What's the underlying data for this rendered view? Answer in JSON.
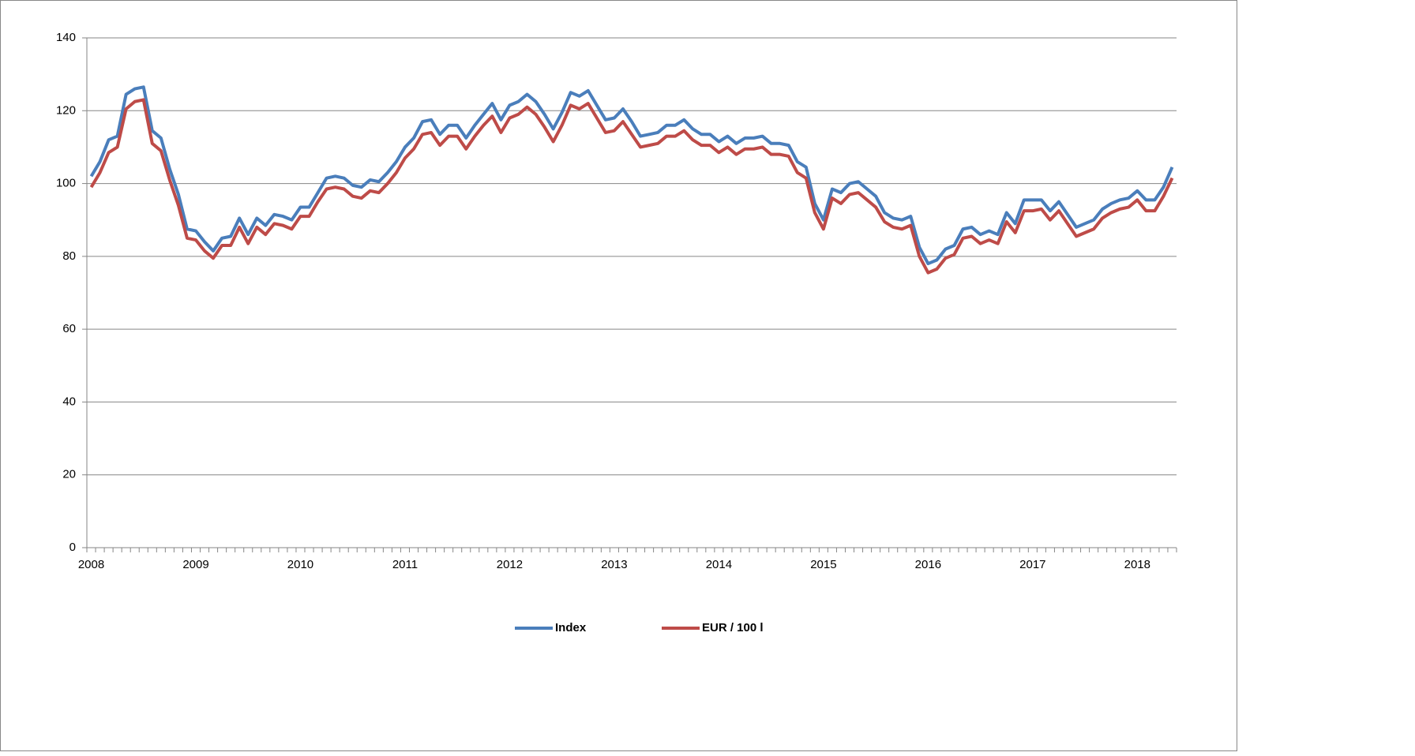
{
  "chart_data": {
    "type": "line",
    "categories": [
      "2008",
      null,
      null,
      null,
      null,
      null,
      null,
      null,
      null,
      null,
      null,
      null,
      "2009",
      null,
      null,
      null,
      null,
      null,
      null,
      null,
      null,
      null,
      null,
      null,
      "2010",
      null,
      null,
      null,
      null,
      null,
      null,
      null,
      null,
      null,
      null,
      null,
      "2011",
      null,
      null,
      null,
      null,
      null,
      null,
      null,
      null,
      null,
      null,
      null,
      "2012",
      null,
      null,
      null,
      null,
      null,
      null,
      null,
      null,
      null,
      null,
      null,
      "2013",
      null,
      null,
      null,
      null,
      null,
      null,
      null,
      null,
      null,
      null,
      null,
      "2014",
      null,
      null,
      null,
      null,
      null,
      null,
      null,
      null,
      null,
      null,
      null,
      "2015",
      null,
      null,
      null,
      null,
      null,
      null,
      null,
      null,
      null,
      null,
      null,
      "2016",
      null,
      null,
      null,
      null,
      null,
      null,
      null,
      null,
      null,
      null,
      null,
      "2017",
      null,
      null,
      null,
      null,
      null,
      null,
      null,
      null,
      null,
      null,
      null,
      "2018",
      null,
      null,
      null,
      null
    ],
    "series": [
      {
        "name": "Index",
        "color": "#4a7ebb",
        "values": [
          102,
          106,
          112,
          113,
          124.5,
          126,
          126.5,
          114.5,
          112.5,
          104,
          97,
          87.5,
          87,
          84,
          81.5,
          85,
          85.5,
          90.5,
          86,
          90.5,
          88.5,
          91.5,
          91,
          90,
          93.5,
          93.5,
          97.5,
          101.5,
          102,
          101.5,
          99.5,
          99,
          101,
          100.5,
          103,
          106,
          110,
          112.5,
          117,
          117.5,
          113.5,
          116,
          116,
          112.5,
          116,
          119,
          122,
          117.5,
          121.5,
          122.5,
          124.5,
          122.5,
          119,
          115,
          119.5,
          125,
          124,
          125.5,
          121.5,
          117.5,
          118,
          120.5,
          117,
          113,
          113.5,
          114,
          116,
          116,
          117.5,
          115,
          113.5,
          113.5,
          111.5,
          113,
          111,
          112.5,
          112.5,
          113,
          111,
          111,
          110.5,
          106,
          104.5,
          94.5,
          90,
          98.5,
          97.5,
          100,
          100.5,
          98.5,
          96.5,
          92,
          90.5,
          90,
          91,
          82.5,
          78,
          79,
          82,
          83,
          87.5,
          88,
          86,
          87,
          86,
          92,
          89,
          95.5,
          95.5,
          95.5,
          92.5,
          95,
          91.5,
          88,
          89,
          90,
          93,
          94.5,
          95.5,
          96,
          98,
          95.5,
          95.5,
          99,
          104.5
        ]
      },
      {
        "name": "EUR / 100 l",
        "color": "#be4b48",
        "values": [
          99,
          103,
          108.5,
          110,
          120.5,
          122.5,
          123,
          111,
          109,
          101,
          94,
          85,
          84.5,
          81.5,
          79.5,
          83,
          83,
          88,
          83.5,
          88,
          86,
          89,
          88.5,
          87.5,
          91,
          91,
          95,
          98.5,
          99,
          98.5,
          96.5,
          96,
          98,
          97.5,
          100,
          103,
          107,
          109.5,
          113.5,
          114,
          110.5,
          113,
          113,
          109.5,
          113,
          116,
          118.5,
          114,
          118,
          119,
          121,
          119,
          115.5,
          111.5,
          116,
          121.5,
          120.5,
          122,
          118,
          114,
          114.5,
          117,
          113.5,
          110,
          110.5,
          111,
          113,
          113,
          114.5,
          112,
          110.5,
          110.5,
          108.5,
          110,
          108,
          109.5,
          109.5,
          110,
          108,
          108,
          107.5,
          103,
          101.5,
          92,
          87.5,
          96,
          94.5,
          97,
          97.5,
          95.5,
          93.5,
          89.5,
          88,
          87.5,
          88.5,
          80,
          75.5,
          76.5,
          79.5,
          80.5,
          85,
          85.5,
          83.5,
          84.5,
          83.5,
          89.5,
          86.5,
          92.5,
          92.5,
          93,
          90,
          92.5,
          89,
          85.5,
          86.5,
          87.5,
          90.5,
          92,
          93,
          93.5,
          95.5,
          92.5,
          92.5,
          96.5,
          101.5
        ]
      }
    ],
    "ylim": [
      0,
      140
    ],
    "yticks": [
      0,
      20,
      40,
      60,
      80,
      100,
      120,
      140
    ],
    "grid": true,
    "legend": "bottom"
  }
}
